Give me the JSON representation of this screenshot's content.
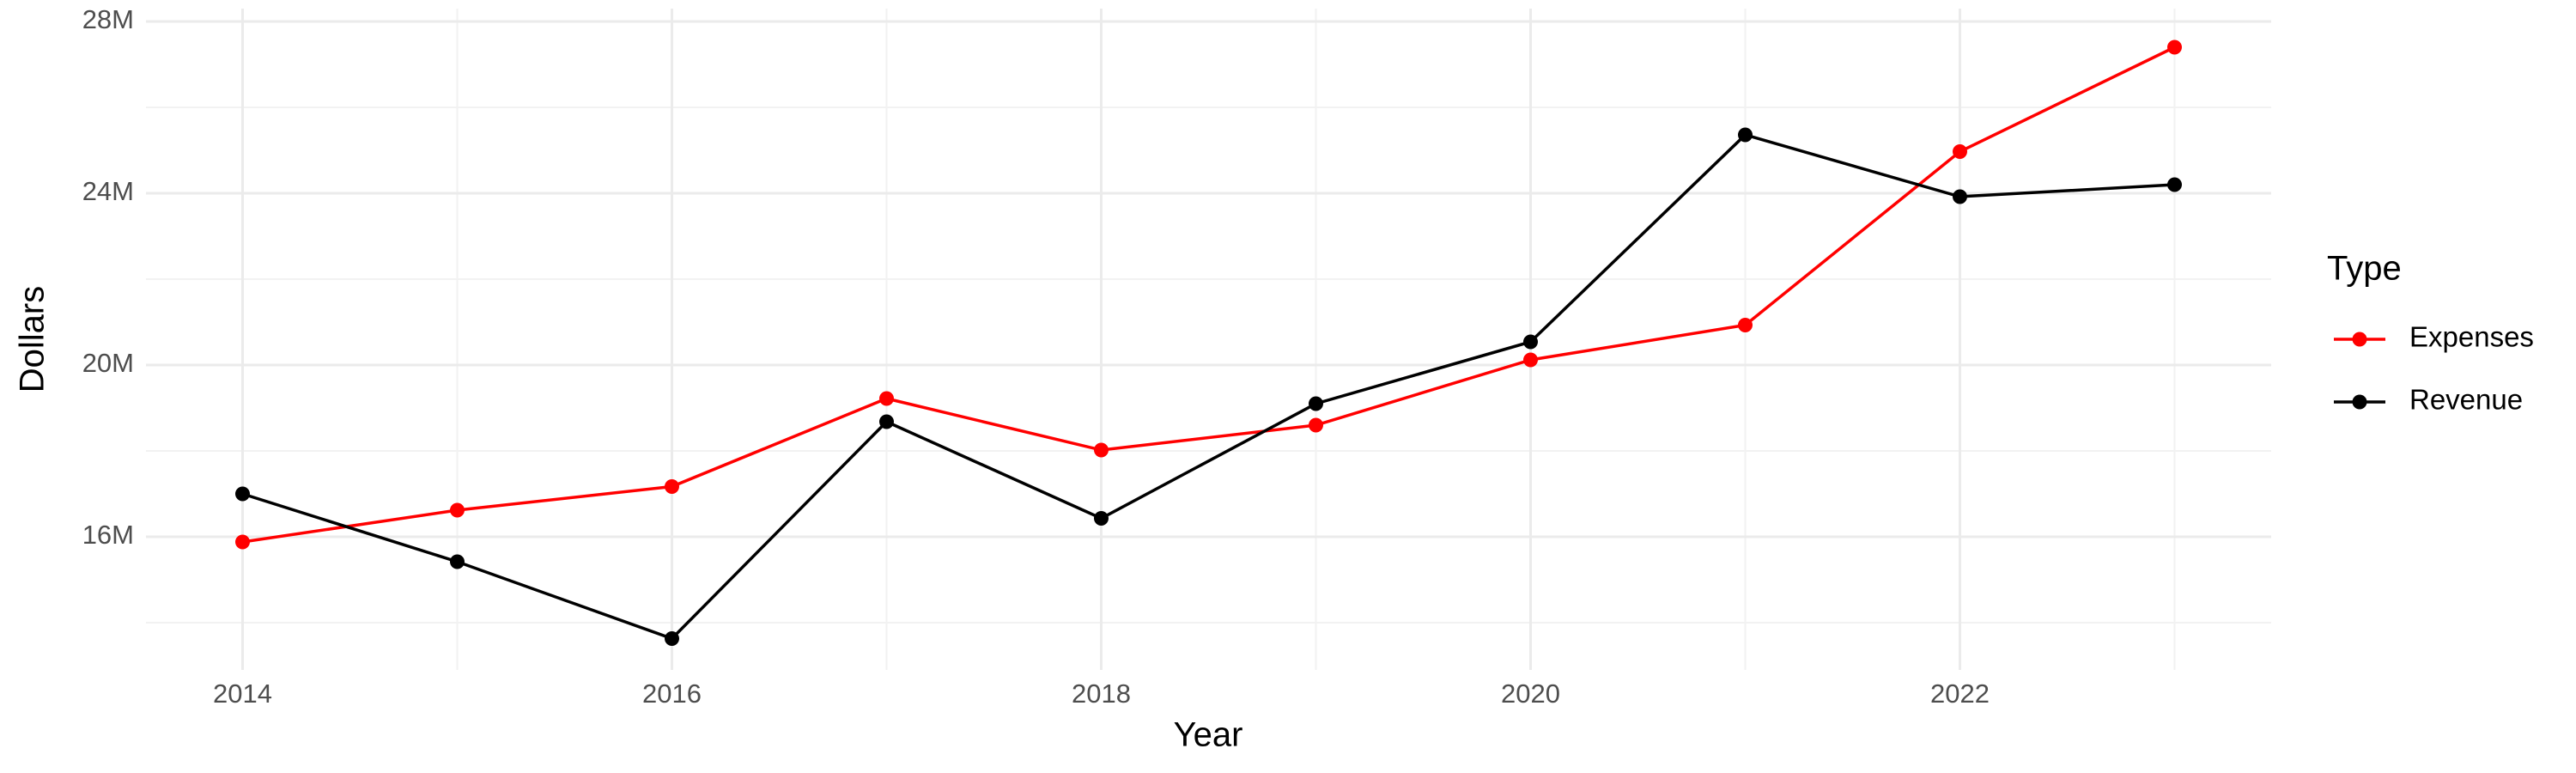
{
  "chart_data": {
    "type": "line",
    "x_label": "Year",
    "y_label": "Dollars",
    "legend_title": "Type",
    "x": [
      2014,
      2015,
      2016,
      2017,
      2018,
      2019,
      2020,
      2021,
      2022,
      2023
    ],
    "series": [
      {
        "name": "Expenses",
        "color": "#ff0000",
        "values": [
          15880000,
          16620000,
          17170000,
          19220000,
          18020000,
          18600000,
          20120000,
          20930000,
          24970000,
          27400000
        ]
      },
      {
        "name": "Revenue",
        "color": "#000000",
        "values": [
          17000000,
          15420000,
          13630000,
          18680000,
          16430000,
          19100000,
          20540000,
          25360000,
          23920000,
          24200000
        ]
      }
    ],
    "xlim": [
      2013.55,
      2023.45
    ],
    "xticks": [
      2014,
      2016,
      2018,
      2020,
      2022
    ],
    "ylim": [
      12900000,
      28300000
    ],
    "yticks": [
      {
        "value": 16000000,
        "label": "16M"
      },
      {
        "value": 20000000,
        "label": "20M"
      },
      {
        "value": 24000000,
        "label": "24M"
      },
      {
        "value": 28000000,
        "label": "28M"
      }
    ],
    "grid": true,
    "legend": "right"
  }
}
